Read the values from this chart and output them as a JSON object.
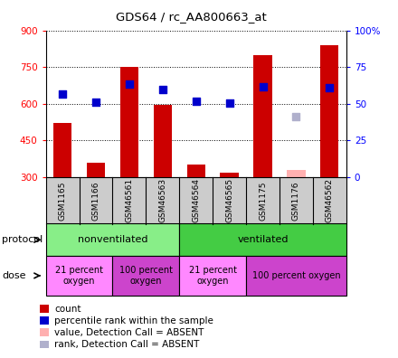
{
  "title": "GDS64 / rc_AA800663_at",
  "samples": [
    "GSM1165",
    "GSM1166",
    "GSM46561",
    "GSM46563",
    "GSM46564",
    "GSM46565",
    "GSM1175",
    "GSM1176",
    "GSM46562"
  ],
  "red_bars": [
    520,
    360,
    750,
    595,
    350,
    320,
    800,
    null,
    840
  ],
  "blue_dots": [
    640,
    608,
    680,
    660,
    610,
    603,
    670,
    null,
    665
  ],
  "absent_red": [
    null,
    null,
    null,
    null,
    null,
    null,
    null,
    330,
    null
  ],
  "absent_blue": [
    null,
    null,
    null,
    null,
    null,
    null,
    null,
    548,
    null
  ],
  "ylim_left": [
    300,
    900
  ],
  "ylim_right": [
    0,
    100
  ],
  "yticks_left": [
    300,
    450,
    600,
    750,
    900
  ],
  "yticks_right": [
    0,
    25,
    50,
    75,
    100
  ],
  "ytick_labels_right": [
    "0",
    "25",
    "50",
    "75",
    "100%"
  ],
  "bar_color": "#cc0000",
  "dot_color": "#0000cc",
  "absent_bar_color": "#ffb0b0",
  "absent_dot_color": "#b0b0cc",
  "protocol_nonvent_color": "#88ee88",
  "protocol_vent_color": "#44cc44",
  "dose_21_color": "#ff88ff",
  "dose_100_color": "#cc44cc",
  "label_bg_color": "#cccccc",
  "protocol_groups": [
    {
      "label": "nonventilated",
      "start": 0,
      "end": 4
    },
    {
      "label": "ventilated",
      "start": 4,
      "end": 9
    }
  ],
  "dose_groups": [
    {
      "label": "21 percent\noxygen",
      "start": 0,
      "end": 2,
      "is_100": false
    },
    {
      "label": "100 percent\noxygen",
      "start": 2,
      "end": 4,
      "is_100": true
    },
    {
      "label": "21 percent\noxygen",
      "start": 4,
      "end": 6,
      "is_100": false
    },
    {
      "label": "100 percent oxygen",
      "start": 6,
      "end": 9,
      "is_100": true
    }
  ],
  "legend_items": [
    {
      "label": "count",
      "color": "#cc0000"
    },
    {
      "label": "percentile rank within the sample",
      "color": "#0000cc"
    },
    {
      "label": "value, Detection Call = ABSENT",
      "color": "#ffb0b0"
    },
    {
      "label": "rank, Detection Call = ABSENT",
      "color": "#b0b0cc"
    }
  ]
}
